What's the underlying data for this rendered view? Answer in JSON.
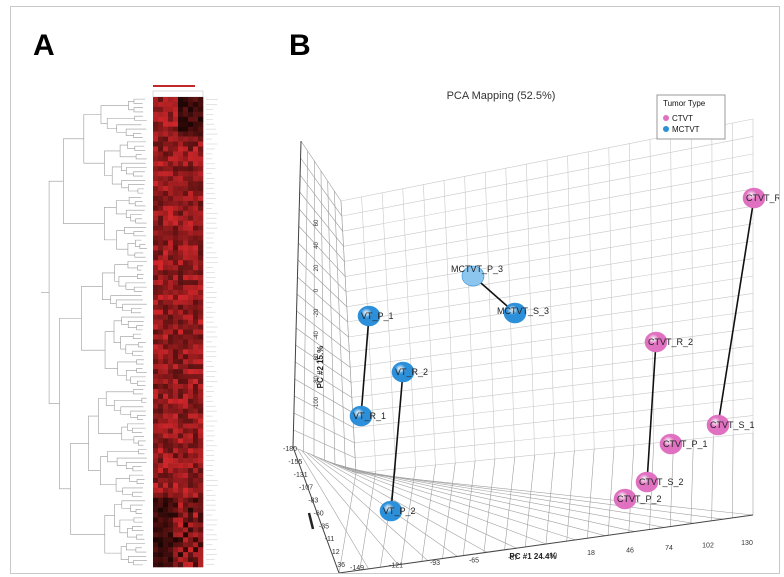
{
  "figure": {
    "panel_a_label": "A",
    "panel_b_label": "B"
  },
  "heatmap": {
    "dark_color": "#1a0503",
    "bright_color": "#d3272b",
    "top_bar_color": "#c0282b"
  },
  "chart_data": {
    "type": "scatter3d",
    "title": "PCA Mapping (52.5%)",
    "xlabel": "PC #1 24.4%",
    "ylabel": "PC #2 15.%",
    "x_ticks": [
      "-149",
      "-121",
      "-93",
      "-65",
      "-37",
      "-10",
      "18",
      "46",
      "74",
      "102",
      "130"
    ],
    "z_ticks": [
      "-180",
      "-155",
      "-131",
      "-107",
      "-83",
      "-60",
      "-35",
      "-11",
      "12",
      "36"
    ],
    "y_ticks": [
      "-100",
      "-80",
      "-60",
      "-40",
      "-20",
      "0",
      "20",
      "40",
      "60"
    ],
    "legend": {
      "title": "Tumor Type",
      "position": "top-right",
      "entries": [
        {
          "name": "CTVT",
          "color": "#e070c0"
        },
        {
          "name": "MCTVT",
          "color": "#2c8fd9"
        }
      ]
    },
    "series": [
      {
        "name": "MCTVT",
        "color": "#2c8fd9",
        "points": [
          {
            "label": "MCTVT_P_1",
            "shown": "VT_P_1"
          },
          {
            "label": "MCTVT_R_2",
            "shown": "VT_R_2"
          },
          {
            "label": "MCTVT_R_1",
            "shown": "VT_R_1"
          },
          {
            "label": "MCTVT_P_2",
            "shown": "VT_P_2"
          },
          {
            "label": "MCTVT_P_3",
            "shown": "MCTVT_P_3"
          },
          {
            "label": "MCTVT_S_3",
            "shown": "MCTVT_S_3"
          }
        ],
        "links": [
          [
            "MCTVT_P_1",
            "MCTVT_R_1"
          ],
          [
            "MCTVT_R_2",
            "MCTVT_P_2"
          ],
          [
            "MCTVT_P_3",
            "MCTVT_S_3"
          ]
        ]
      },
      {
        "name": "CTVT",
        "color": "#e070c0",
        "points": [
          {
            "label": "CTVT_R_",
            "shown": "CTVT_R_"
          },
          {
            "label": "CTVT_R_2",
            "shown": "CTVT_R_2"
          },
          {
            "label": "CTVT_S_1",
            "shown": "CTVT_S_1"
          },
          {
            "label": "CTVT_P_1",
            "shown": "CTVT_P_1"
          },
          {
            "label": "CTVT_S_2",
            "shown": "CTVT_S_2"
          },
          {
            "label": "CTVT_P_2",
            "shown": "CTVT_P_2"
          }
        ],
        "links": [
          [
            "CTVT_R_",
            "CTVT_S_1"
          ],
          [
            "CTVT_R_2",
            "CTVT_S_2"
          ]
        ]
      }
    ]
  }
}
